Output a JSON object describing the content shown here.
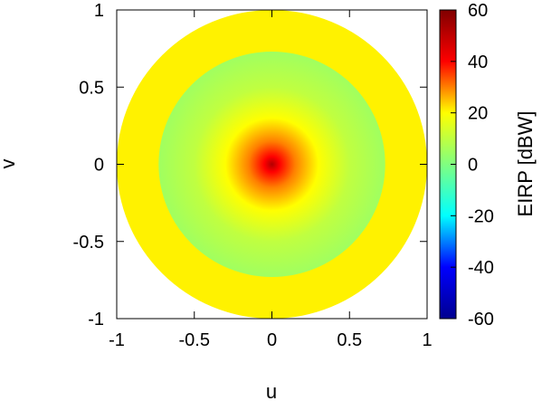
{
  "chart_data": {
    "type": "heatmap",
    "title": "",
    "xlabel": "u",
    "ylabel": "v",
    "xlim": [
      -1,
      1
    ],
    "ylim": [
      -1,
      1
    ],
    "xticks": [
      "-1",
      "-0.5",
      "0",
      "0.5",
      "1"
    ],
    "yticks": [
      "1",
      "0.5",
      "0",
      "-0.5",
      "-1"
    ],
    "grid": false,
    "colorbar": {
      "label": "EIRP [dBW]",
      "range": [
        -60,
        60
      ],
      "ticks": [
        "60",
        "40",
        "20",
        "0",
        "-20",
        "-40",
        "-60"
      ],
      "colormap": [
        "#00008f",
        "#0000ff",
        "#00ffff",
        "#80ff80",
        "#ffff00",
        "#ff0000",
        "#800000"
      ]
    },
    "regions": [
      {
        "name": "outer-ring",
        "r_min": 0.73,
        "r_max": 1.0,
        "eirp_dbw": 21
      },
      {
        "name": "inner-disk",
        "r_min": 0.0,
        "r_max": 0.73,
        "profile": [
          [
            0.0,
            52
          ],
          [
            0.05,
            40
          ],
          [
            0.15,
            30
          ],
          [
            0.3,
            20
          ],
          [
            0.5,
            10
          ],
          [
            0.73,
            5
          ]
        ]
      }
    ]
  }
}
